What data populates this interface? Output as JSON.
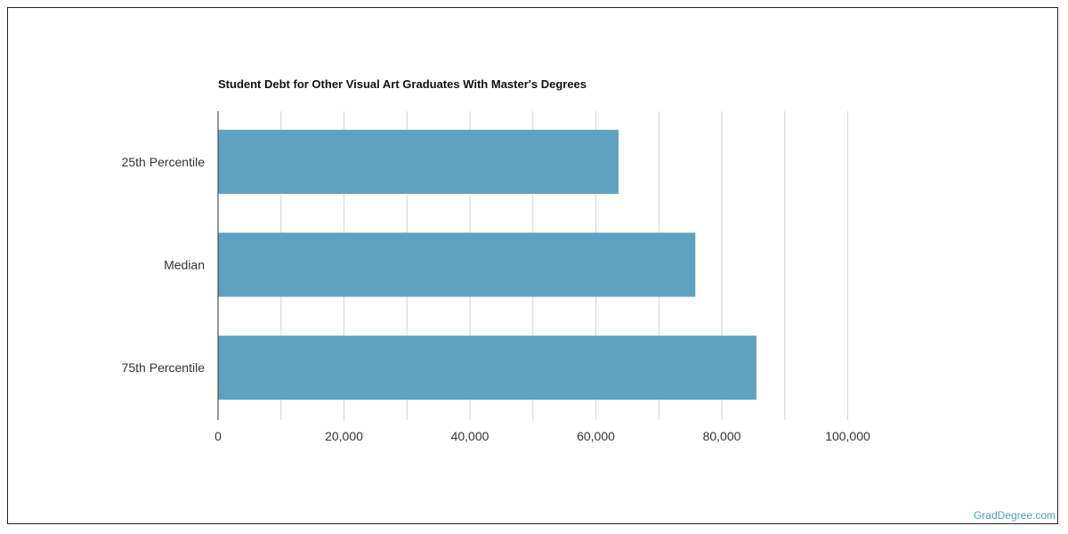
{
  "chart_data": {
    "type": "bar",
    "orientation": "horizontal",
    "title": "Student Debt for Other Visual Art Graduates With Master's Degrees",
    "categories": [
      "25th Percentile",
      "Median",
      "75th Percentile"
    ],
    "values": [
      63600,
      75800,
      85500
    ],
    "xlim": [
      0,
      100000
    ],
    "xticks": [
      "0",
      "20,000",
      "40,000",
      "60,000",
      "80,000",
      "100,000"
    ],
    "grid": true,
    "bar_color": "#5fa2bf"
  },
  "source_credit": "GradDegree.com",
  "colors": {
    "source_text": "#4a9fc0"
  }
}
